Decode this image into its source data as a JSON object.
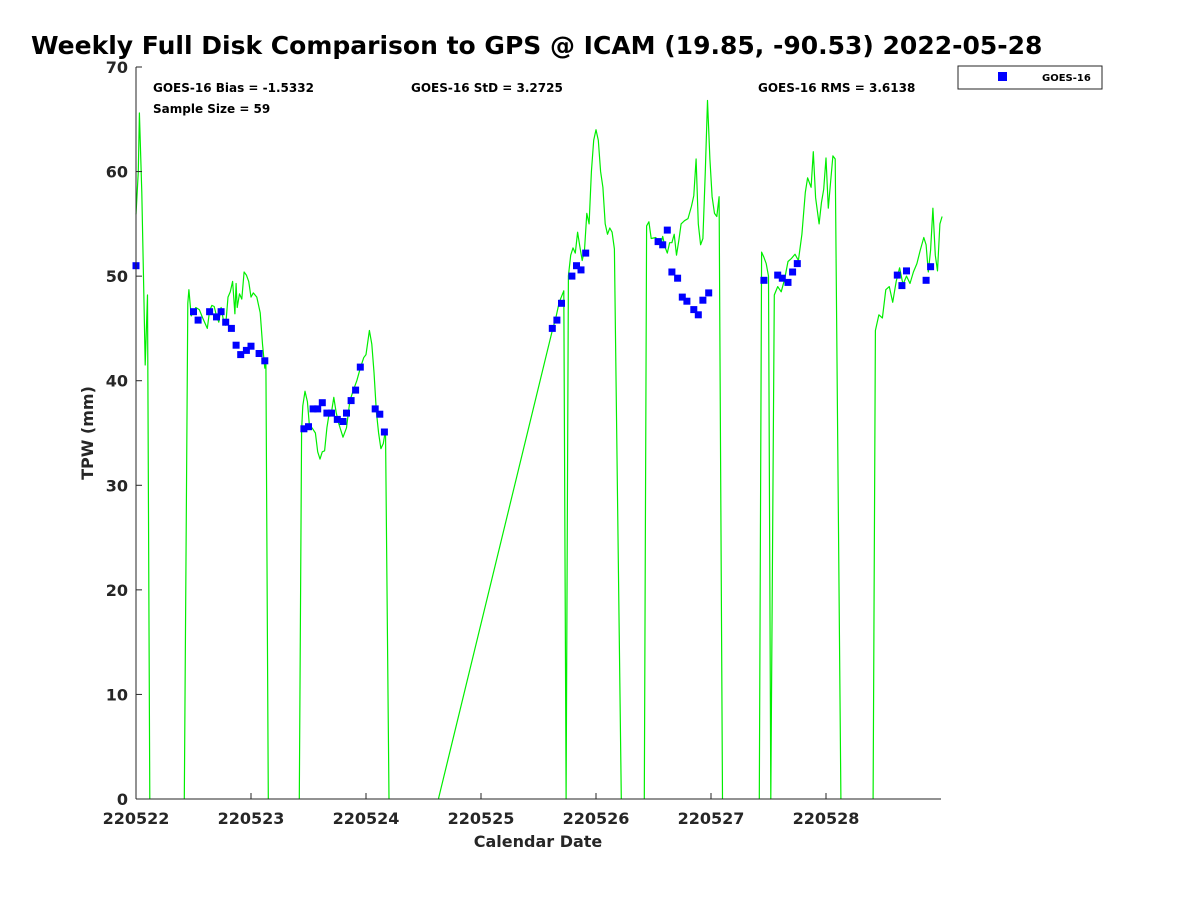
{
  "chart_data": {
    "type": "scatter",
    "title": "Weekly Full Disk Comparison to GPS @ ICAM (19.85, -90.53) 2022-05-28",
    "xlabel": "Calendar Date",
    "ylabel": "TPW (mm)",
    "xlim": [
      "220522",
      "220529"
    ],
    "ylim": [
      0,
      70
    ],
    "y_ticks": [
      0,
      10,
      20,
      30,
      40,
      50,
      60,
      70
    ],
    "x_ticks": [
      "220522",
      "220523",
      "220524",
      "220525",
      "220526",
      "220527",
      "220528"
    ],
    "grid": false,
    "legend_position": "top-right, outside plot",
    "stats": {
      "bias": "GOES-16 Bias = -1.5332",
      "std": "GOES-16 StD = 3.2725",
      "rms": "GOES-16 RMS = 3.6138",
      "sample": "Sample Size = 59"
    },
    "series": [
      {
        "name": "GOES-16",
        "kind": "scatter",
        "color": "#0000ff",
        "points": [
          [
            0.0,
            51.0
          ],
          [
            0.5,
            46.6
          ],
          [
            0.54,
            45.8
          ],
          [
            0.64,
            46.6
          ],
          [
            0.7,
            46.1
          ],
          [
            0.74,
            46.6
          ],
          [
            0.78,
            45.6
          ],
          [
            0.83,
            45.0
          ],
          [
            0.87,
            43.4
          ],
          [
            0.91,
            42.5
          ],
          [
            0.96,
            42.9
          ],
          [
            1.0,
            43.3
          ],
          [
            1.07,
            42.6
          ],
          [
            1.12,
            41.9
          ],
          [
            1.46,
            35.4
          ],
          [
            1.5,
            35.6
          ],
          [
            1.54,
            37.3
          ],
          [
            1.58,
            37.3
          ],
          [
            1.62,
            37.9
          ],
          [
            1.66,
            36.9
          ],
          [
            1.7,
            36.9
          ],
          [
            1.75,
            36.3
          ],
          [
            1.8,
            36.1
          ],
          [
            1.83,
            36.9
          ],
          [
            1.87,
            38.1
          ],
          [
            1.91,
            39.1
          ],
          [
            1.95,
            41.3
          ],
          [
            2.08,
            37.3
          ],
          [
            2.12,
            36.8
          ],
          [
            2.16,
            35.1
          ],
          [
            3.62,
            45.0
          ],
          [
            3.66,
            45.8
          ],
          [
            3.7,
            47.4
          ],
          [
            3.79,
            50.0
          ],
          [
            3.83,
            51.0
          ],
          [
            3.87,
            50.6
          ],
          [
            3.91,
            52.2
          ],
          [
            4.54,
            53.3
          ],
          [
            4.58,
            53.0
          ],
          [
            4.62,
            54.4
          ],
          [
            4.66,
            50.4
          ],
          [
            4.71,
            49.8
          ],
          [
            4.75,
            48.0
          ],
          [
            4.79,
            47.6
          ],
          [
            4.85,
            46.8
          ],
          [
            4.89,
            46.3
          ],
          [
            4.93,
            47.7
          ],
          [
            4.98,
            48.4
          ],
          [
            5.46,
            49.6
          ],
          [
            5.58,
            50.1
          ],
          [
            5.62,
            49.8
          ],
          [
            5.67,
            49.4
          ],
          [
            5.71,
            50.4
          ],
          [
            5.75,
            51.2
          ],
          [
            6.62,
            50.1
          ],
          [
            6.66,
            49.1
          ],
          [
            6.7,
            50.5
          ],
          [
            6.87,
            49.6
          ],
          [
            6.91,
            50.9
          ]
        ]
      },
      {
        "name": "",
        "kind": "line",
        "color": "#00ee00",
        "segments": [
          [
            [
              0.0,
              55.9
            ],
            [
              0.02,
              60.0
            ],
            [
              0.03,
              65.6
            ],
            [
              0.05,
              58.0
            ],
            [
              0.07,
              47.0
            ],
            [
              0.08,
              41.5
            ],
            [
              0.1,
              48.2
            ],
            [
              0.12,
              0.0
            ]
          ],
          [
            [
              0.42,
              0.0
            ],
            [
              0.45,
              47.4
            ],
            [
              0.46,
              48.7
            ],
            [
              0.48,
              46.2
            ],
            [
              0.5,
              46.6
            ],
            [
              0.52,
              47.0
            ],
            [
              0.55,
              46.8
            ],
            [
              0.58,
              46.0
            ],
            [
              0.62,
              45.0
            ],
            [
              0.64,
              46.7
            ],
            [
              0.66,
              47.2
            ],
            [
              0.68,
              47.1
            ],
            [
              0.7,
              46.2
            ],
            [
              0.72,
              45.6
            ],
            [
              0.74,
              47.0
            ],
            [
              0.76,
              45.8
            ],
            [
              0.78,
              45.3
            ],
            [
              0.8,
              48.0
            ],
            [
              0.82,
              48.5
            ],
            [
              0.84,
              49.5
            ],
            [
              0.86,
              46.4
            ],
            [
              0.87,
              49.3
            ],
            [
              0.88,
              47.0
            ],
            [
              0.9,
              48.3
            ],
            [
              0.92,
              47.8
            ],
            [
              0.94,
              50.4
            ],
            [
              0.96,
              50.1
            ],
            [
              0.98,
              49.5
            ],
            [
              1.0,
              48.0
            ],
            [
              1.02,
              48.4
            ],
            [
              1.05,
              48.0
            ],
            [
              1.08,
              46.5
            ],
            [
              1.1,
              43.5
            ],
            [
              1.12,
              41.2
            ],
            [
              1.13,
              41.7
            ],
            [
              1.15,
              0.0
            ]
          ],
          [
            [
              1.42,
              0.0
            ],
            [
              1.44,
              35.3
            ],
            [
              1.45,
              37.6
            ],
            [
              1.47,
              39.0
            ],
            [
              1.49,
              38.0
            ],
            [
              1.51,
              35.5
            ],
            [
              1.53,
              35.5
            ],
            [
              1.56,
              35.0
            ],
            [
              1.58,
              33.2
            ],
            [
              1.6,
              32.5
            ],
            [
              1.62,
              33.2
            ],
            [
              1.64,
              33.3
            ],
            [
              1.66,
              35.5
            ],
            [
              1.68,
              36.9
            ],
            [
              1.7,
              37.0
            ],
            [
              1.72,
              38.4
            ],
            [
              1.74,
              37.0
            ],
            [
              1.76,
              36.0
            ],
            [
              1.8,
              34.6
            ],
            [
              1.83,
              35.5
            ],
            [
              1.86,
              38.1
            ],
            [
              1.89,
              39.1
            ],
            [
              1.92,
              40.0
            ],
            [
              1.95,
              41.2
            ],
            [
              1.98,
              42.2
            ],
            [
              2.0,
              42.5
            ],
            [
              2.03,
              44.8
            ],
            [
              2.05,
              43.5
            ],
            [
              2.07,
              40.8
            ],
            [
              2.09,
              37.0
            ],
            [
              2.11,
              35.0
            ],
            [
              2.13,
              33.5
            ],
            [
              2.15,
              34.0
            ],
            [
              2.17,
              35.3
            ],
            [
              2.2,
              0.0
            ]
          ],
          [
            [
              2.63,
              0.0
            ],
            [
              3.62,
              44.8
            ],
            [
              3.65,
              46.0
            ],
            [
              3.68,
              47.5
            ],
            [
              3.72,
              48.6
            ],
            [
              3.74,
              0.0
            ],
            [
              3.76,
              50.0
            ],
            [
              3.78,
              52.0
            ],
            [
              3.8,
              52.7
            ],
            [
              3.82,
              52.2
            ],
            [
              3.84,
              54.2
            ],
            [
              3.86,
              52.8
            ],
            [
              3.88,
              51.5
            ],
            [
              3.9,
              52.5
            ],
            [
              3.92,
              56.0
            ],
            [
              3.94,
              55.0
            ],
            [
              3.96,
              60.0
            ],
            [
              3.98,
              63.0
            ],
            [
              4.0,
              64.0
            ],
            [
              4.02,
              63.0
            ],
            [
              4.04,
              60.0
            ],
            [
              4.06,
              58.5
            ],
            [
              4.08,
              55.0
            ],
            [
              4.1,
              54.0
            ],
            [
              4.12,
              54.6
            ],
            [
              4.14,
              54.2
            ],
            [
              4.16,
              52.6
            ],
            [
              4.22,
              0.0
            ]
          ],
          [
            [
              4.42,
              0.0
            ],
            [
              4.44,
              54.8
            ],
            [
              4.46,
              55.2
            ],
            [
              4.48,
              53.6
            ],
            [
              4.52,
              53.7
            ],
            [
              4.56,
              52.9
            ],
            [
              4.58,
              53.8
            ],
            [
              4.6,
              52.8
            ],
            [
              4.62,
              52.2
            ],
            [
              4.64,
              53.2
            ],
            [
              4.66,
              53.2
            ],
            [
              4.68,
              54.0
            ],
            [
              4.7,
              52.0
            ],
            [
              4.72,
              53.4
            ],
            [
              4.74,
              55.0
            ],
            [
              4.77,
              55.3
            ],
            [
              4.8,
              55.5
            ],
            [
              4.83,
              56.7
            ],
            [
              4.85,
              57.7
            ],
            [
              4.87,
              61.2
            ],
            [
              4.89,
              55.0
            ],
            [
              4.91,
              53.0
            ],
            [
              4.93,
              53.6
            ],
            [
              4.95,
              60.0
            ],
            [
              4.97,
              66.8
            ],
            [
              4.99,
              61.2
            ],
            [
              5.01,
              57.6
            ],
            [
              5.03,
              56.0
            ],
            [
              5.05,
              55.7
            ],
            [
              5.07,
              57.6
            ],
            [
              5.1,
              0.0
            ]
          ],
          [
            [
              5.42,
              0.0
            ],
            [
              5.44,
              52.3
            ],
            [
              5.46,
              51.8
            ],
            [
              5.48,
              51.2
            ],
            [
              5.5,
              50.0
            ],
            [
              5.52,
              0.0
            ],
            [
              5.55,
              48.2
            ],
            [
              5.58,
              49.0
            ],
            [
              5.61,
              48.5
            ],
            [
              5.64,
              49.7
            ],
            [
              5.67,
              51.4
            ],
            [
              5.7,
              51.7
            ],
            [
              5.73,
              52.1
            ],
            [
              5.76,
              51.5
            ],
            [
              5.79,
              54.0
            ],
            [
              5.82,
              58.0
            ],
            [
              5.84,
              59.4
            ],
            [
              5.87,
              58.5
            ],
            [
              5.89,
              61.9
            ],
            [
              5.91,
              57.5
            ],
            [
              5.94,
              55.0
            ],
            [
              5.96,
              57.0
            ],
            [
              5.98,
              58.3
            ],
            [
              6.0,
              61.3
            ],
            [
              6.02,
              56.5
            ],
            [
              6.04,
              59.0
            ],
            [
              6.06,
              61.5
            ],
            [
              6.08,
              61.2
            ],
            [
              6.13,
              0.0
            ]
          ],
          [
            [
              6.41,
              0.0
            ],
            [
              6.43,
              44.8
            ],
            [
              6.46,
              46.3
            ],
            [
              6.49,
              46.0
            ],
            [
              6.52,
              48.7
            ],
            [
              6.55,
              49.0
            ],
            [
              6.58,
              47.5
            ],
            [
              6.61,
              49.5
            ],
            [
              6.64,
              50.8
            ],
            [
              6.67,
              49.2
            ],
            [
              6.7,
              50.0
            ],
            [
              6.73,
              49.3
            ],
            [
              6.76,
              50.4
            ],
            [
              6.79,
              51.2
            ],
            [
              6.82,
              52.5
            ],
            [
              6.85,
              53.7
            ],
            [
              6.87,
              53.0
            ],
            [
              6.89,
              50.4
            ],
            [
              6.91,
              52.5
            ],
            [
              6.93,
              56.5
            ],
            [
              6.95,
              52.0
            ],
            [
              6.97,
              50.5
            ],
            [
              6.99,
              55.0
            ],
            [
              7.01,
              55.7
            ]
          ]
        ]
      }
    ]
  }
}
